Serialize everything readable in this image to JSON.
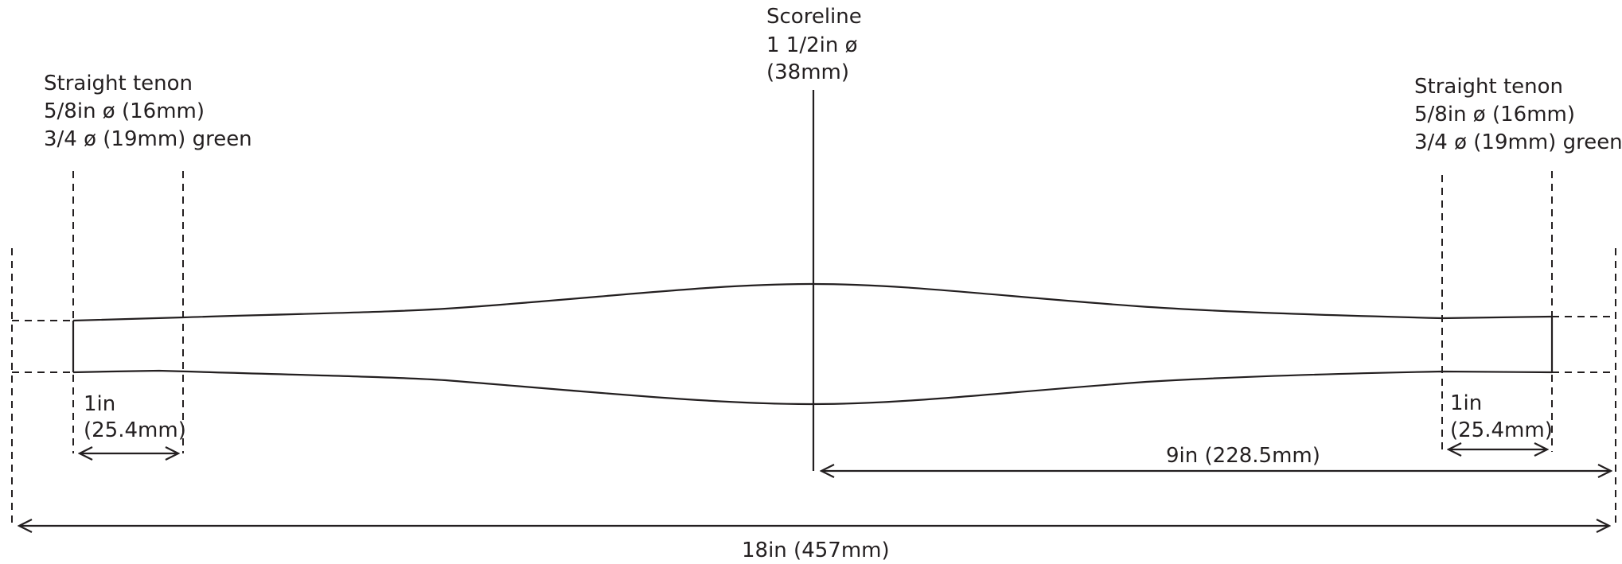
{
  "labels": {
    "scoreline": {
      "line1": "Scoreline",
      "line2": "1 1/2in ø",
      "line3": "(38mm)"
    },
    "left_tenon": {
      "line1": "Straight tenon",
      "line2": "5/8in ø (16mm)",
      "line3": "3/4 ø (19mm) green"
    },
    "right_tenon": {
      "line1": "Straight tenon",
      "line2": "5/8in ø (16mm)",
      "line3": "3/4 ø (19mm) green"
    }
  },
  "dimensions": {
    "left_tenon_length": {
      "line1": "1in",
      "line2": "(25.4mm)"
    },
    "right_tenon_length": {
      "line1": "1in",
      "line2": "(25.4mm)"
    },
    "half_length": "9in (228.5mm)",
    "overall_length": "18in (457mm)"
  },
  "colors": {
    "ink": "#231f20",
    "background": "#ffffff"
  }
}
